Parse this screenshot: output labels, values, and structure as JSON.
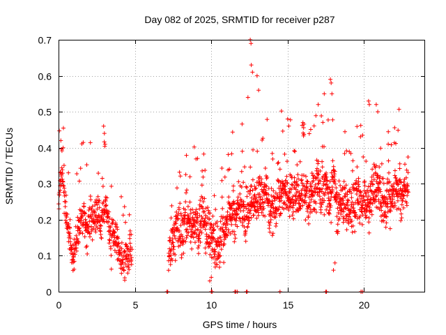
{
  "chart_data": {
    "type": "scatter",
    "title": "Day 082 of 2025, SRMTID for receiver p287",
    "xlabel": "GPS time / hours",
    "ylabel": "SRMTID / TECUs",
    "xlim": [
      0,
      24
    ],
    "ylim": [
      0,
      0.7
    ],
    "x_ticks": [
      0,
      5,
      10,
      15,
      20
    ],
    "x_tick_labels": [
      "0",
      "5",
      "10",
      "15",
      "20"
    ],
    "y_ticks": [
      0,
      0.1,
      0.2,
      0.3,
      0.4,
      0.5,
      0.6,
      0.7
    ],
    "y_tick_labels": [
      "0",
      "0.1",
      "0.2",
      "0.3",
      "0.4",
      "0.5",
      "0.6",
      "0.7"
    ],
    "grid": true,
    "marker": "+",
    "color": "#ff0000",
    "series": [
      {
        "name": "SRMTID",
        "segments": [
          {
            "x_start": 0.0,
            "x_end": 4.8,
            "points": 420,
            "level": [
              [
                0.0,
                0.25
              ],
              [
                0.2,
                0.33
              ],
              [
                0.5,
                0.2
              ],
              [
                1.0,
                0.14
              ],
              [
                1.5,
                0.22
              ],
              [
                2.0,
                0.16
              ],
              [
                2.5,
                0.21
              ],
              [
                3.0,
                0.22
              ],
              [
                3.5,
                0.13
              ],
              [
                4.0,
                0.12
              ],
              [
                4.8,
                0.11
              ]
            ],
            "spread": 0.045
          },
          {
            "x_start": 7.2,
            "x_end": 22.9,
            "points": 1500,
            "level": [
              [
                7.2,
                0.12
              ],
              [
                8.0,
                0.16
              ],
              [
                9.0,
                0.2
              ],
              [
                10.0,
                0.15
              ],
              [
                11.0,
                0.18
              ],
              [
                12.0,
                0.23
              ],
              [
                13.0,
                0.26
              ],
              [
                14.0,
                0.24
              ],
              [
                15.0,
                0.29
              ],
              [
                16.0,
                0.27
              ],
              [
                17.0,
                0.28
              ],
              [
                18.0,
                0.3
              ],
              [
                19.0,
                0.22
              ],
              [
                20.0,
                0.27
              ],
              [
                21.0,
                0.29
              ],
              [
                22.0,
                0.26
              ],
              [
                22.9,
                0.27
              ]
            ],
            "spread": 0.06
          }
        ],
        "highlights": [
          {
            "x": 0.15,
            "y": 0.42
          },
          {
            "x": 0.3,
            "y": 0.4
          },
          {
            "x": 2.95,
            "y": 0.46
          },
          {
            "x": 3.0,
            "y": 0.44
          },
          {
            "x": 3.05,
            "y": 0.41
          },
          {
            "x": 12.55,
            "y": 0.7
          },
          {
            "x": 12.6,
            "y": 0.69
          },
          {
            "x": 12.62,
            "y": 0.63
          },
          {
            "x": 12.7,
            "y": 0.61
          },
          {
            "x": 13.0,
            "y": 0.6
          },
          {
            "x": 13.1,
            "y": 0.56
          },
          {
            "x": 12.4,
            "y": 0.54
          },
          {
            "x": 17.8,
            "y": 0.59
          },
          {
            "x": 17.85,
            "y": 0.58
          },
          {
            "x": 17.9,
            "y": 0.55
          },
          {
            "x": 17.4,
            "y": 0.55
          },
          {
            "x": 17.0,
            "y": 0.52
          },
          {
            "x": 20.3,
            "y": 0.53
          },
          {
            "x": 20.35,
            "y": 0.52
          },
          {
            "x": 20.8,
            "y": 0.52
          },
          {
            "x": 20.9,
            "y": 0.5
          },
          {
            "x": 15.0,
            "y": 0.48
          },
          {
            "x": 16.0,
            "y": 0.47
          },
          {
            "x": 18.0,
            "y": 0.06
          },
          {
            "x": 18.1,
            "y": 0.08
          },
          {
            "x": 9.9,
            "y": 0.03
          },
          {
            "x": 10.0,
            "y": 0.04
          }
        ],
        "zero_points": [
          7.1,
          7.15,
          10.0,
          10.05,
          11.55,
          11.6,
          11.7,
          12.3,
          12.35,
          14.5,
          17.5,
          17.55,
          19.8,
          19.9
        ]
      }
    ]
  }
}
